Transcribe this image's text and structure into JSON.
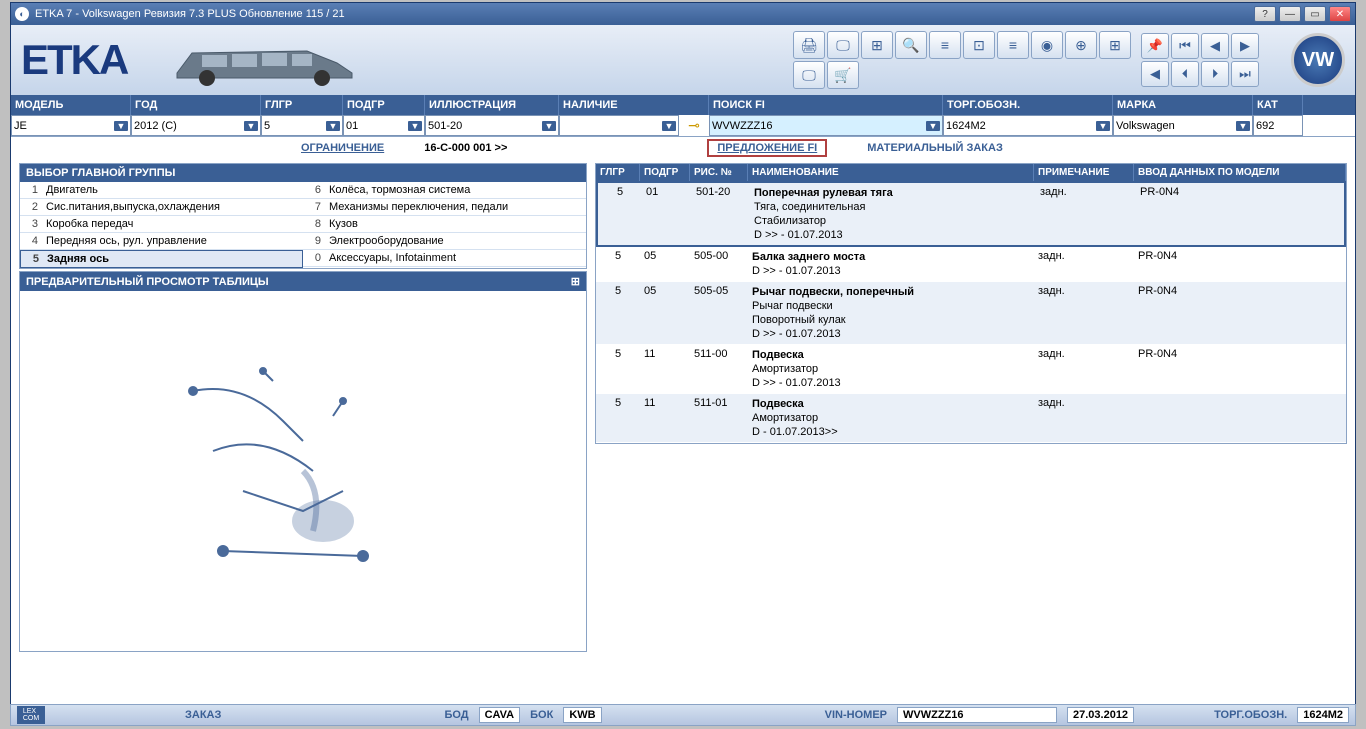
{
  "window": {
    "title": "ETKA 7 - Volkswagen Ревизия 7.3 PLUS Обновление 115 / 21"
  },
  "header": {
    "logo": "ETKA",
    "vw": "VW"
  },
  "filters": {
    "labels": {
      "model": "МОДЕЛЬ",
      "year": "ГОД",
      "glgr": "ГЛГР",
      "podgr": "ПОДГР",
      "ill": "ИЛЛЮСТРАЦИЯ",
      "nal": "НАЛИЧИЕ",
      "search": "ПОИСК FI",
      "torg": "ТОРГ.ОБОЗН.",
      "marka": "МАРКА",
      "kat": "КАТ"
    },
    "values": {
      "model": "JE",
      "year": "2012 (C)",
      "glgr": "5",
      "podgr": "01",
      "ill": "501-20",
      "nal": "",
      "search": "WVWZZZ16",
      "torg": "1624M2",
      "marka": "Volkswagen",
      "kat": "692"
    }
  },
  "links": {
    "restrict": "ОГРАНИЧЕНИЕ",
    "restrict_val": "16-C-000 001 >>",
    "offer": "ПРЕДЛОЖЕНИЕ FI",
    "material": "МАТЕРИАЛЬНЫЙ ЗАКАЗ"
  },
  "groups": {
    "header": "ВЫБОР ГЛАВНОЙ ГРУППЫ",
    "left": [
      {
        "n": "1",
        "t": "Двигатель"
      },
      {
        "n": "2",
        "t": "Сис.питания,выпуска,охлаждения"
      },
      {
        "n": "3",
        "t": "Коробка передач"
      },
      {
        "n": "4",
        "t": "Передняя ось, рул. управление"
      },
      {
        "n": "5",
        "t": "Задняя ось",
        "sel": true
      }
    ],
    "right": [
      {
        "n": "6",
        "t": "Колёса, тормозная система"
      },
      {
        "n": "7",
        "t": "Механизмы переключения, педали"
      },
      {
        "n": "8",
        "t": "Кузов"
      },
      {
        "n": "9",
        "t": "Электрооборудование"
      },
      {
        "n": "0",
        "t": "Аксессуары, Infotainment"
      }
    ]
  },
  "preview": {
    "header": "ПРЕДВАРИТЕЛЬНЫЙ ПРОСМОТР ТАБЛИЦЫ"
  },
  "parts": {
    "headers": {
      "glgr": "ГЛГР",
      "podgr": "ПОДГР",
      "ris": "РИС. №",
      "naim": "НАИМЕНОВАНИЕ",
      "prim": "ПРИМЕЧАНИЕ",
      "vvod": "ВВОД ДАННЫХ ПО МОДЕЛИ"
    },
    "rows": [
      {
        "glgr": "5",
        "podgr": "01",
        "ris": "501-20",
        "naim": [
          "Поперечная рулевая тяга",
          "Тяга, соединительная",
          "Стабилизатор",
          "D          >>  - 01.07.2013"
        ],
        "prim": "задн.",
        "vvod": "PR-0N4",
        "sel": true
      },
      {
        "glgr": "5",
        "podgr": "05",
        "ris": "505-00",
        "naim": [
          "Балка заднего моста",
          "D          >>  - 01.07.2013"
        ],
        "prim": "задн.",
        "vvod": "PR-0N4"
      },
      {
        "glgr": "5",
        "podgr": "05",
        "ris": "505-05",
        "naim": [
          "Рычаг подвески, поперечный",
          "Рычаг подвески",
          "Поворотный кулак",
          "D          >>  - 01.07.2013"
        ],
        "prim": "задн.",
        "vvod": "PR-0N4"
      },
      {
        "glgr": "5",
        "podgr": "11",
        "ris": "511-00",
        "naim": [
          "Подвеска",
          "Амортизатор",
          "D          >>  - 01.07.2013"
        ],
        "prim": "задн.",
        "vvod": "PR-0N4"
      },
      {
        "glgr": "5",
        "podgr": "11",
        "ris": "511-01",
        "naim": [
          "Подвеска",
          "Амортизатор",
          "D - 01.07.2013>>"
        ],
        "prim": "задн.",
        "vvod": ""
      }
    ]
  },
  "status": {
    "zakaz": "ЗАКАЗ",
    "bod": "БОД",
    "bod_v": "CAVA",
    "bok": "БОК",
    "bok_v": "KWB",
    "vin": "VIN-НОМЕР",
    "vin_v": "WVWZZZ16",
    "date": "27.03.2012",
    "torg": "ТОРГ.ОБОЗН.",
    "torg_v": "1624M2"
  },
  "colors": {
    "primary": "#3a5f95",
    "accent": "#b04040"
  }
}
